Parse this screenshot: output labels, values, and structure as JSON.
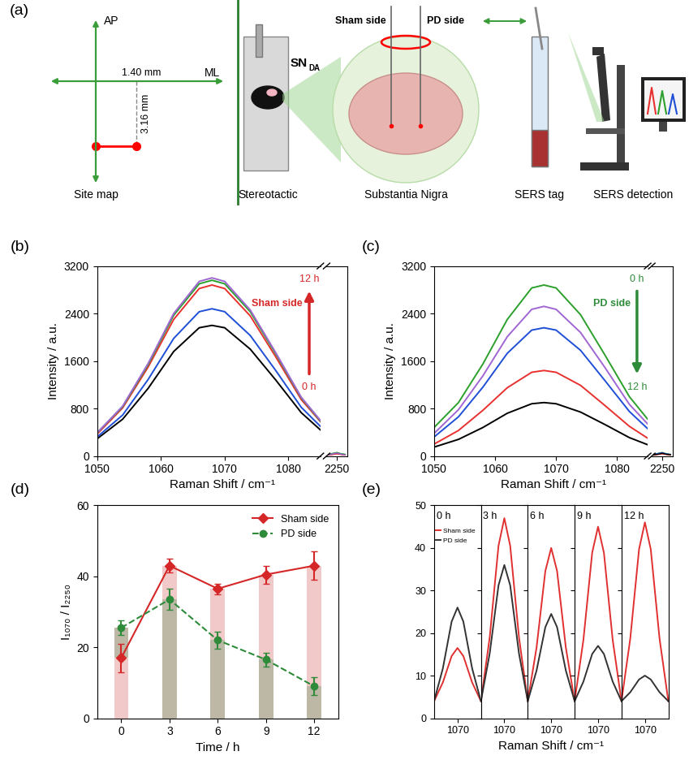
{
  "panel_labels": [
    "(a)",
    "(b)",
    "(c)",
    "(d)",
    "(e)"
  ],
  "diagram": {
    "site_map": {
      "title": "Site map",
      "axis_vertical": "AP",
      "axis_horizontal": "ML",
      "distance_ml": "1.40 mm",
      "distance_dv": "3.16 mm"
    },
    "steps": {
      "stereotactic": "Stereotactic",
      "region": {
        "text": "SN",
        "subscript": "DA"
      },
      "sham": "Sham side",
      "pd": "PD side",
      "brain": "Substantia Nigra",
      "tag": "SERS tag",
      "detection": "SERS detection"
    }
  },
  "chart_data": [
    {
      "type": "line",
      "x_label": "Raman Shift / cm⁻¹",
      "y_label": "Intensity / a.u.",
      "x": [
        1050,
        1054,
        1058,
        1062,
        1066,
        1068,
        1070,
        1074,
        1078,
        1082,
        1085
      ],
      "xlim": [
        1050,
        1085
      ],
      "xticks": [
        1050,
        1060,
        1070,
        1080
      ],
      "x_break": [
        2246,
        2248,
        2250,
        2252,
        2254
      ],
      "x_break_lim": [
        2245,
        2255
      ],
      "x_break_ticks": [
        2250
      ],
      "ylim": [
        0,
        3200
      ],
      "yticks": [
        0,
        800,
        1600,
        2400,
        3200
      ],
      "arrow": {
        "label": "Sham side",
        "from": "0 h",
        "to": "12 h",
        "color": "#d62728"
      },
      "series": [
        {
          "color": "#000000",
          "values": [
            290,
            620,
            1140,
            1760,
            2160,
            2200,
            2160,
            1800,
            1280,
            730,
            440
          ],
          "values_break": [
            20,
            30,
            45,
            30,
            20
          ]
        },
        {
          "color": "#1f4fd6",
          "values": [
            320,
            690,
            1290,
            1980,
            2430,
            2480,
            2430,
            2030,
            1440,
            820,
            500
          ],
          "values_break": [
            25,
            40,
            55,
            35,
            25
          ]
        },
        {
          "color": "#e8312f",
          "values": [
            370,
            810,
            1500,
            2300,
            2820,
            2880,
            2820,
            2360,
            1670,
            950,
            580
          ],
          "values_break": [
            15,
            25,
            35,
            25,
            15
          ]
        },
        {
          "color": "#2ca02c",
          "values": [
            390,
            830,
            1540,
            2370,
            2900,
            2960,
            2900,
            2430,
            1720,
            980,
            590
          ],
          "values_break": [
            30,
            45,
            60,
            40,
            30
          ]
        },
        {
          "color": "#a066d3",
          "values": [
            390,
            840,
            1560,
            2400,
            2940,
            3000,
            2940,
            2460,
            1740,
            990,
            600
          ],
          "values_break": [
            20,
            35,
            50,
            30,
            20
          ]
        }
      ]
    },
    {
      "type": "line",
      "x_label": "Raman Shift / cm⁻¹",
      "y_label": "Intensity / a.u.",
      "x": [
        1050,
        1054,
        1058,
        1062,
        1066,
        1068,
        1070,
        1074,
        1078,
        1082,
        1085
      ],
      "xlim": [
        1050,
        1085
      ],
      "xticks": [
        1050,
        1060,
        1070,
        1080
      ],
      "x_break": [
        2246,
        2248,
        2250,
        2252,
        2254
      ],
      "x_break_lim": [
        2245,
        2255
      ],
      "x_break_ticks": [
        2250
      ],
      "ylim": [
        0,
        3200
      ],
      "yticks": [
        0,
        800,
        1600,
        2400,
        3200
      ],
      "arrow": {
        "label": "PD side",
        "from": "0 h",
        "to": "12 h",
        "color": "#2e8b3a"
      },
      "series": [
        {
          "color": "#2ca02c",
          "values": [
            480,
            900,
            1550,
            2300,
            2830,
            2880,
            2830,
            2380,
            1700,
            1000,
            620
          ],
          "values_break": [
            30,
            45,
            60,
            40,
            30
          ]
        },
        {
          "color": "#a066d3",
          "values": [
            380,
            780,
            1350,
            2010,
            2470,
            2520,
            2470,
            2080,
            1490,
            870,
            540
          ],
          "values_break": [
            20,
            35,
            50,
            30,
            20
          ]
        },
        {
          "color": "#1f4fd6",
          "values": [
            320,
            660,
            1160,
            1730,
            2120,
            2160,
            2120,
            1780,
            1270,
            750,
            460
          ],
          "values_break": [
            25,
            40,
            55,
            35,
            25
          ]
        },
        {
          "color": "#e8312f",
          "values": [
            200,
            430,
            770,
            1150,
            1410,
            1440,
            1410,
            1190,
            850,
            500,
            300
          ],
          "values_break": [
            15,
            25,
            35,
            25,
            15
          ]
        },
        {
          "color": "#000000",
          "values": [
            150,
            280,
            480,
            720,
            880,
            900,
            880,
            740,
            530,
            310,
            190
          ],
          "values_break": [
            20,
            30,
            45,
            30,
            20
          ]
        }
      ]
    },
    {
      "type": "combo",
      "x_label": "Time / h",
      "y_label": "I₁₀₇₀ / I₂₂₅₀",
      "x": [
        0,
        3,
        6,
        9,
        12
      ],
      "xlim": [
        -1.5,
        13.5
      ],
      "xticks": [
        0,
        3,
        6,
        9,
        12
      ],
      "ylim": [
        0,
        60
      ],
      "yticks": [
        0,
        20,
        40,
        60
      ],
      "legend": "upper right",
      "series": [
        {
          "name": "Sham side",
          "color": "#d62728",
          "marker": "diamond",
          "line_style": "solid",
          "values": [
            17,
            43,
            36.5,
            40.5,
            43
          ],
          "errors": [
            4,
            2,
            1.5,
            2.5,
            4
          ]
        },
        {
          "name": "PD side",
          "color": "#2e8b3a",
          "marker": "circle",
          "line_style": "dashed",
          "values": [
            25.5,
            33.5,
            22,
            16.5,
            9
          ],
          "errors": [
            2,
            3,
            2.5,
            2,
            2.5
          ]
        }
      ]
    },
    {
      "type": "line",
      "x_label": "Raman Shift / cm⁻¹",
      "x": [
        1062,
        1065,
        1068,
        1070,
        1072,
        1075,
        1078
      ],
      "xlim": [
        1062,
        1078
      ],
      "xticks": [
        1070
      ],
      "ylim": [
        0,
        50
      ],
      "yticks": [
        0,
        10,
        20,
        30,
        40,
        50
      ],
      "legend": "upper left",
      "panels": [
        {
          "title": "0 h",
          "series": [
            {
              "name": "Sham side",
              "color": "#e03030",
              "values": [
                4,
                8.4,
                14.6,
                16.5,
                14.6,
                8.4,
                4
              ]
            },
            {
              "name": "PD side",
              "color": "#333333",
              "values": [
                4,
                11.7,
                22.7,
                26,
                22.7,
                11.7,
                4
              ]
            }
          ]
        },
        {
          "title": "3 h",
          "series": [
            {
              "name": "Sham side",
              "color": "#e03030",
              "values": [
                4,
                19,
                40.5,
                47,
                40.5,
                19,
                4
              ]
            },
            {
              "name": "PD side",
              "color": "#333333",
              "values": [
                4,
                15.2,
                31.2,
                36,
                31.2,
                15.2,
                4
              ]
            }
          ]
        },
        {
          "title": "6 h",
          "series": [
            {
              "name": "Sham side",
              "color": "#e03030",
              "values": [
                4,
                16.6,
                34.6,
                40,
                34.6,
                16.6,
                4
              ]
            },
            {
              "name": "PD side",
              "color": "#333333",
              "values": [
                4,
                11.2,
                21.4,
                24.5,
                21.4,
                11.2,
                4
              ]
            }
          ]
        },
        {
          "title": "9 h",
          "series": [
            {
              "name": "Sham side",
              "color": "#e03030",
              "values": [
                4,
                18.4,
                38.9,
                45,
                38.9,
                18.4,
                4
              ]
            },
            {
              "name": "PD side",
              "color": "#333333",
              "values": [
                4,
                8.6,
                15.1,
                17,
                15.1,
                8.6,
                4
              ]
            }
          ]
        },
        {
          "title": "12 h",
          "series": [
            {
              "name": "Sham side",
              "color": "#e03030",
              "values": [
                4,
                18.7,
                39.7,
                46,
                39.7,
                18.7,
                4
              ]
            },
            {
              "name": "PD side",
              "color": "#333333",
              "values": [
                4,
                6.1,
                9.1,
                10,
                9.1,
                6.1,
                4
              ]
            }
          ]
        }
      ]
    }
  ]
}
